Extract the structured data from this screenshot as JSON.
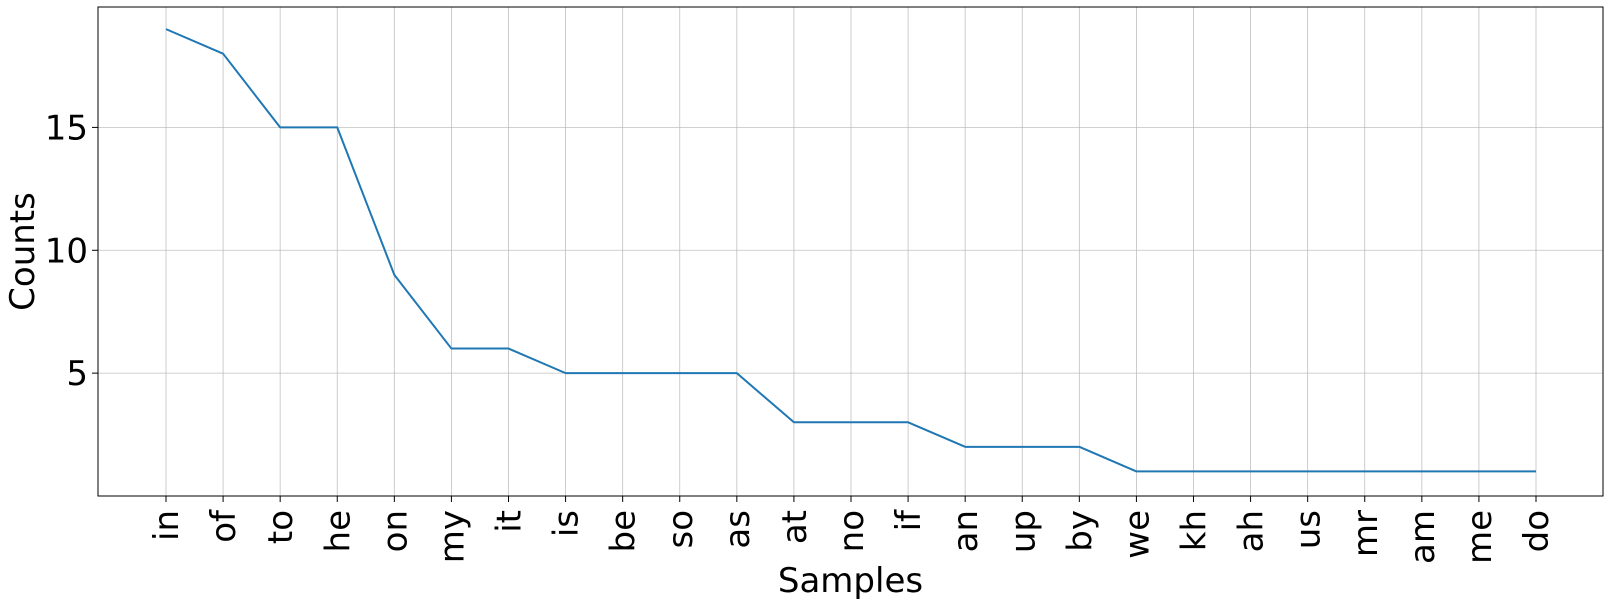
{
  "chart_data": {
    "type": "line",
    "title": "",
    "xlabel": "Samples",
    "ylabel": "Counts",
    "categories": [
      "in",
      "of",
      "to",
      "he",
      "on",
      "my",
      "it",
      "is",
      "be",
      "so",
      "as",
      "at",
      "no",
      "if",
      "an",
      "up",
      "by",
      "we",
      "kh",
      "ah",
      "us",
      "mr",
      "am",
      "me",
      "do"
    ],
    "series": [
      {
        "values": [
          19,
          18,
          15,
          15,
          9,
          6,
          6,
          5,
          5,
          5,
          5,
          3,
          3,
          3,
          2,
          2,
          2,
          1,
          1,
          1,
          1,
          1,
          1,
          1,
          1
        ]
      }
    ],
    "ylim": [
      0.0,
      19.9
    ],
    "yticks": [
      5,
      10,
      15
    ],
    "grid": true,
    "line_color": "#1f77b4"
  }
}
